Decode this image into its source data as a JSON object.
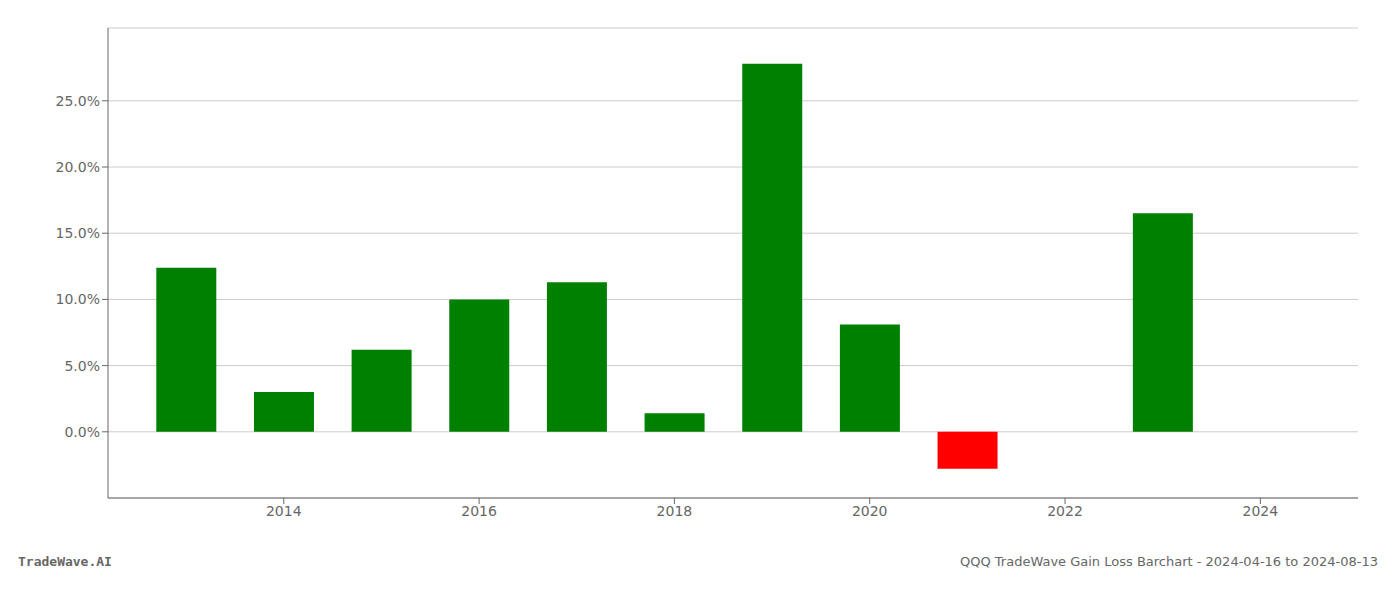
{
  "chart_data": {
    "type": "bar",
    "x": [
      2013,
      2014,
      2015,
      2016,
      2017,
      2018,
      2019,
      2020,
      2021,
      2022,
      2023
    ],
    "values": [
      0.124,
      0.03,
      0.062,
      0.1,
      0.113,
      0.014,
      0.278,
      0.081,
      -0.028,
      0.0,
      0.165
    ],
    "colors": [
      "#008000",
      "#008000",
      "#008000",
      "#008000",
      "#008000",
      "#008000",
      "#008000",
      "#008000",
      "#ff0000",
      null,
      "#008000"
    ],
    "xlim": [
      2012.2,
      2025.0
    ],
    "xticks": [
      2014,
      2016,
      2018,
      2020,
      2022,
      2024
    ],
    "ylim": [
      -0.05,
      0.305
    ],
    "yticks": [
      {
        "value": 0.0,
        "label": "0.0%"
      },
      {
        "value": 0.05,
        "label": "5.0%"
      },
      {
        "value": 0.1,
        "label": "10.0%"
      },
      {
        "value": 0.15,
        "label": "15.0%"
      },
      {
        "value": 0.2,
        "label": "20.0%"
      },
      {
        "value": 0.25,
        "label": "25.0%"
      }
    ],
    "grid": true,
    "annotations": [
      "TradeWave.AI",
      "QQQ TradeWave Gain Loss Barchart - 2024-04-16 to 2024-08-13"
    ]
  }
}
